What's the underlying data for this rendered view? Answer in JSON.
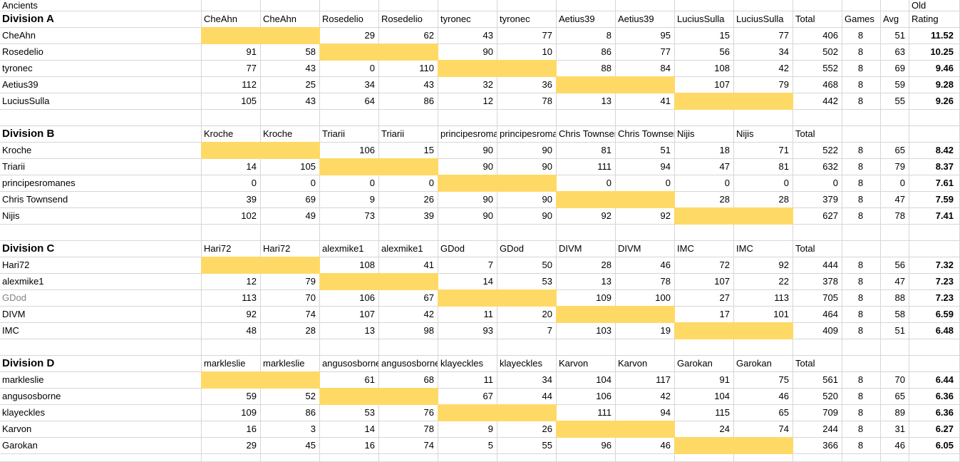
{
  "sheet": {
    "title": "Ancients",
    "corner_label": "Old",
    "summary_headers": {
      "total": "Total",
      "games": "Games",
      "avg": "Avg",
      "rating": "Rating"
    },
    "colors": {
      "highlight": "#ffd966",
      "gridline": "#d6d6d6",
      "muted_text": "#808080",
      "text": "#000000",
      "background": "#ffffff"
    },
    "divisions": [
      {
        "label": "Division A",
        "players": [
          "CheAhn",
          "Rosedelio",
          "tyronec",
          "Aetius39",
          "LuciusSulla"
        ],
        "rows": [
          {
            "name": "CheAhn",
            "scores": [
              null,
              null,
              29,
              62,
              43,
              77,
              8,
              95,
              15,
              77
            ],
            "total": 406,
            "games": 8,
            "avg": 51,
            "rating": "11.52"
          },
          {
            "name": "Rosedelio",
            "scores": [
              91,
              58,
              null,
              null,
              90,
              10,
              86,
              77,
              56,
              34
            ],
            "total": 502,
            "games": 8,
            "avg": 63,
            "rating": "10.25"
          },
          {
            "name": "tyronec",
            "scores": [
              77,
              43,
              0,
              110,
              null,
              null,
              88,
              84,
              108,
              42
            ],
            "total": 552,
            "games": 8,
            "avg": 69,
            "rating": "9.46"
          },
          {
            "name": "Aetius39",
            "scores": [
              112,
              25,
              34,
              43,
              32,
              36,
              null,
              null,
              107,
              79
            ],
            "total": 468,
            "games": 8,
            "avg": 59,
            "rating": "9.28"
          },
          {
            "name": "LuciusSulla",
            "scores": [
              105,
              43,
              64,
              86,
              12,
              78,
              13,
              41,
              null,
              null
            ],
            "total": 442,
            "games": 8,
            "avg": 55,
            "rating": "9.26"
          }
        ]
      },
      {
        "label": "Division B",
        "players": [
          "Kroche",
          "Triarii",
          "principesromanes",
          "Chris Townsend",
          "Nijis"
        ],
        "rows": [
          {
            "name": "Kroche",
            "scores": [
              null,
              null,
              106,
              15,
              90,
              90,
              81,
              51,
              18,
              71
            ],
            "total": 522,
            "games": 8,
            "avg": 65,
            "rating": "8.42"
          },
          {
            "name": "Triarii",
            "scores": [
              14,
              105,
              null,
              null,
              90,
              90,
              111,
              94,
              47,
              81
            ],
            "total": 632,
            "games": 8,
            "avg": 79,
            "rating": "8.37"
          },
          {
            "name": "principesromanes",
            "scores": [
              0,
              0,
              0,
              0,
              null,
              null,
              0,
              0,
              0,
              0
            ],
            "total": 0,
            "games": 8,
            "avg": 0,
            "rating": "7.61"
          },
          {
            "name": "Chris Townsend",
            "scores": [
              39,
              69,
              9,
              26,
              90,
              90,
              null,
              null,
              28,
              28
            ],
            "total": 379,
            "games": 8,
            "avg": 47,
            "rating": "7.59"
          },
          {
            "name": "Nijis",
            "scores": [
              102,
              49,
              73,
              39,
              90,
              90,
              92,
              92,
              null,
              null
            ],
            "total": 627,
            "games": 8,
            "avg": 78,
            "rating": "7.41"
          }
        ]
      },
      {
        "label": "Division C",
        "players": [
          "Hari72",
          "alexmike1",
          "GDod",
          "DIVM",
          "IMC"
        ],
        "rows": [
          {
            "name": "Hari72",
            "scores": [
              null,
              null,
              108,
              41,
              7,
              50,
              28,
              46,
              72,
              92
            ],
            "total": 444,
            "games": 8,
            "avg": 56,
            "rating": "7.32"
          },
          {
            "name": "alexmike1",
            "scores": [
              12,
              79,
              null,
              null,
              14,
              53,
              13,
              78,
              107,
              22
            ],
            "total": 378,
            "games": 8,
            "avg": 47,
            "rating": "7.23"
          },
          {
            "name": "GDod",
            "muted": true,
            "scores": [
              113,
              70,
              106,
              67,
              null,
              null,
              109,
              100,
              27,
              113
            ],
            "total": 705,
            "games": 8,
            "avg": 88,
            "rating": "7.23"
          },
          {
            "name": "DIVM",
            "scores": [
              92,
              74,
              107,
              42,
              11,
              20,
              null,
              null,
              17,
              101
            ],
            "total": 464,
            "games": 8,
            "avg": 58,
            "rating": "6.59"
          },
          {
            "name": "IMC",
            "scores": [
              48,
              28,
              13,
              98,
              93,
              7,
              103,
              19,
              null,
              null
            ],
            "total": 409,
            "games": 8,
            "avg": 51,
            "rating": "6.48"
          }
        ]
      },
      {
        "label": "Division D",
        "players": [
          "markleslie",
          "angusosborne",
          "klayeckles",
          "Karvon",
          "Garokan"
        ],
        "rows": [
          {
            "name": "markleslie",
            "scores": [
              null,
              null,
              61,
              68,
              11,
              34,
              104,
              117,
              91,
              75
            ],
            "total": 561,
            "games": 8,
            "avg": 70,
            "rating": "6.44"
          },
          {
            "name": "angusosborne",
            "scores": [
              59,
              52,
              null,
              null,
              67,
              44,
              106,
              42,
              104,
              46
            ],
            "total": 520,
            "games": 8,
            "avg": 65,
            "rating": "6.36"
          },
          {
            "name": "klayeckles",
            "scores": [
              109,
              86,
              53,
              76,
              null,
              null,
              111,
              94,
              115,
              65
            ],
            "total": 709,
            "games": 8,
            "avg": 89,
            "rating": "6.36"
          },
          {
            "name": "Karvon",
            "scores": [
              16,
              3,
              14,
              78,
              9,
              26,
              null,
              null,
              24,
              74
            ],
            "total": 244,
            "games": 8,
            "avg": 31,
            "rating": "6.27"
          },
          {
            "name": "Garokan",
            "scores": [
              29,
              45,
              16,
              74,
              5,
              55,
              96,
              46,
              null,
              null
            ],
            "total": 366,
            "games": 8,
            "avg": 46,
            "rating": "6.05"
          }
        ]
      }
    ]
  }
}
